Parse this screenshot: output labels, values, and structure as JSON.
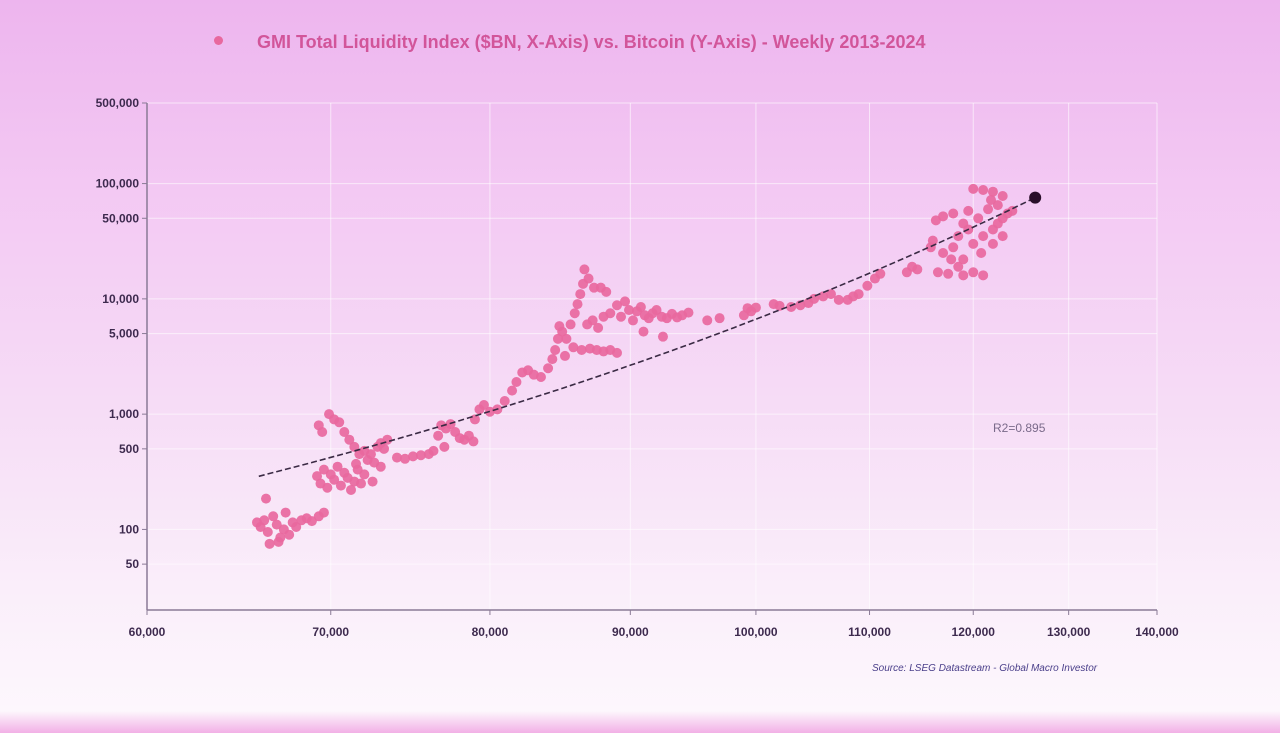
{
  "chart_data": {
    "type": "scatter",
    "title": "GMI Total Liquidity Index ($BN, X-Axis) vs. Bitcoin (Y-Axis) - Weekly 2013-2024",
    "xlabel": "",
    "ylabel": "",
    "x_scale": "log",
    "y_scale": "log",
    "xlim": [
      60000,
      140000
    ],
    "ylim": [
      20,
      500000
    ],
    "x_ticks": [
      "60,000",
      "70,000",
      "80,000",
      "90,000",
      "100,000",
      "110,000",
      "120,000",
      "130,000",
      "140,000"
    ],
    "x_tick_values": [
      60000,
      70000,
      80000,
      90000,
      100000,
      110000,
      120000,
      130000,
      140000
    ],
    "y_ticks": [
      "500,000",
      "100,000",
      "50,000",
      "10,000",
      "5,000",
      "1,000",
      "500",
      "100",
      "50"
    ],
    "y_tick_values": [
      500000,
      100000,
      50000,
      10000,
      5000,
      1000,
      500,
      100,
      50
    ],
    "grid": true,
    "legend": "top-left",
    "colors": {
      "points": "#e8689e",
      "latest": "#2a0f2a",
      "trend": "#3a2a44",
      "title": "#d2559a"
    },
    "annotation": "R2=0.895",
    "source": "Source: LSEG Datastream - Global Macro Investor",
    "trendline": {
      "type": "exponential",
      "x_start": 65900,
      "y_start": 289,
      "x_end": 126400,
      "y_end": 75500
    },
    "latest_point": [
      126400,
      75500
    ],
    "points": [
      [
        65800,
        115
      ],
      [
        66000,
        105
      ],
      [
        66200,
        120
      ],
      [
        66400,
        95
      ],
      [
        66500,
        75
      ],
      [
        66700,
        130
      ],
      [
        66900,
        110
      ],
      [
        67100,
        85
      ],
      [
        67300,
        100
      ],
      [
        67400,
        140
      ],
      [
        67600,
        90
      ],
      [
        67800,
        115
      ],
      [
        68000,
        105
      ],
      [
        68300,
        120
      ],
      [
        68600,
        125
      ],
      [
        68900,
        118
      ],
      [
        69300,
        130
      ],
      [
        69600,
        140
      ],
      [
        66300,
        185
      ],
      [
        67000,
        78
      ],
      [
        69200,
        290
      ],
      [
        69400,
        250
      ],
      [
        69600,
        330
      ],
      [
        69800,
        230
      ],
      [
        70000,
        300
      ],
      [
        70200,
        270
      ],
      [
        70400,
        350
      ],
      [
        70600,
        240
      ],
      [
        70800,
        310
      ],
      [
        71000,
        280
      ],
      [
        71200,
        220
      ],
      [
        71400,
        260
      ],
      [
        71600,
        330
      ],
      [
        71800,
        250
      ],
      [
        72000,
        300
      ],
      [
        72200,
        400
      ],
      [
        72400,
        450
      ],
      [
        72600,
        380
      ],
      [
        72800,
        520
      ],
      [
        73000,
        560
      ],
      [
        73200,
        500
      ],
      [
        73400,
        600
      ],
      [
        73000,
        350
      ],
      [
        72500,
        260
      ],
      [
        71500,
        370
      ],
      [
        69300,
        800
      ],
      [
        69500,
        700
      ],
      [
        69900,
        1000
      ],
      [
        70200,
        900
      ],
      [
        70500,
        850
      ],
      [
        70800,
        700
      ],
      [
        71100,
        600
      ],
      [
        71400,
        520
      ],
      [
        71700,
        450
      ],
      [
        72000,
        480
      ],
      [
        74000,
        420
      ],
      [
        74500,
        410
      ],
      [
        75000,
        430
      ],
      [
        75500,
        440
      ],
      [
        76000,
        450
      ],
      [
        76300,
        480
      ],
      [
        76600,
        650
      ],
      [
        76800,
        800
      ],
      [
        77100,
        750
      ],
      [
        77400,
        820
      ],
      [
        77700,
        700
      ],
      [
        78000,
        620
      ],
      [
        78300,
        600
      ],
      [
        78600,
        650
      ],
      [
        78900,
        580
      ],
      [
        77000,
        520
      ],
      [
        79000,
        900
      ],
      [
        79300,
        1100
      ],
      [
        79600,
        1200
      ],
      [
        80000,
        1050
      ],
      [
        80500,
        1100
      ],
      [
        81000,
        1300
      ],
      [
        81500,
        1600
      ],
      [
        81800,
        1900
      ],
      [
        82200,
        2300
      ],
      [
        82600,
        2400
      ],
      [
        83000,
        2200
      ],
      [
        83500,
        2100
      ],
      [
        84000,
        2500
      ],
      [
        84300,
        3000
      ],
      [
        84500,
        3600
      ],
      [
        84700,
        4500
      ],
      [
        84800,
        5800
      ],
      [
        85000,
        5200
      ],
      [
        85300,
        4500
      ],
      [
        85600,
        6000
      ],
      [
        85900,
        7500
      ],
      [
        86100,
        9000
      ],
      [
        86300,
        11000
      ],
      [
        86500,
        13500
      ],
      [
        86600,
        18000
      ],
      [
        86900,
        15000
      ],
      [
        87300,
        12500
      ],
      [
        87800,
        12500
      ],
      [
        88200,
        11500
      ],
      [
        85200,
        3200
      ],
      [
        85800,
        3800
      ],
      [
        86400,
        3600
      ],
      [
        87000,
        3700
      ],
      [
        87500,
        3600
      ],
      [
        88000,
        3500
      ],
      [
        88500,
        3600
      ],
      [
        89000,
        3400
      ],
      [
        86800,
        6000
      ],
      [
        87200,
        6500
      ],
      [
        87600,
        5600
      ],
      [
        88000,
        7000
      ],
      [
        88500,
        7500
      ],
      [
        89000,
        8800
      ],
      [
        89300,
        7000
      ],
      [
        89600,
        9500
      ],
      [
        89900,
        8000
      ],
      [
        90200,
        6500
      ],
      [
        90500,
        7800
      ],
      [
        90800,
        8500
      ],
      [
        91100,
        7200
      ],
      [
        91400,
        6800
      ],
      [
        91700,
        7500
      ],
      [
        92000,
        8000
      ],
      [
        92400,
        7000
      ],
      [
        92800,
        6800
      ],
      [
        93200,
        7400
      ],
      [
        93600,
        6900
      ],
      [
        94000,
        7200
      ],
      [
        94500,
        7600
      ],
      [
        91000,
        5200
      ],
      [
        92500,
        4700
      ],
      [
        96000,
        6500
      ],
      [
        97000,
        6800
      ],
      [
        99000,
        7200
      ],
      [
        99300,
        8300
      ],
      [
        99600,
        7800
      ],
      [
        100000,
        8400
      ],
      [
        101500,
        9000
      ],
      [
        102000,
        8700
      ],
      [
        103000,
        8500
      ],
      [
        103800,
        8800
      ],
      [
        104500,
        9200
      ],
      [
        105000,
        10000
      ],
      [
        105800,
        10500
      ],
      [
        106500,
        11000
      ],
      [
        107200,
        9800
      ],
      [
        108000,
        9800
      ],
      [
        108500,
        10500
      ],
      [
        109000,
        11000
      ],
      [
        109800,
        13000
      ],
      [
        110500,
        15000
      ],
      [
        111000,
        16500
      ],
      [
        113500,
        17000
      ],
      [
        114000,
        19000
      ],
      [
        114500,
        18000
      ],
      [
        115800,
        28000
      ],
      [
        116000,
        32000
      ],
      [
        116300,
        48000
      ],
      [
        117000,
        52000
      ],
      [
        118000,
        55000
      ],
      [
        119500,
        58000
      ],
      [
        120000,
        90000
      ],
      [
        121000,
        88000
      ],
      [
        122000,
        85000
      ],
      [
        123000,
        78000
      ],
      [
        116500,
        17000
      ],
      [
        117500,
        16500
      ],
      [
        118500,
        19000
      ],
      [
        119000,
        16000
      ],
      [
        120000,
        17000
      ],
      [
        121000,
        16000
      ],
      [
        117000,
        25000
      ],
      [
        118000,
        28000
      ],
      [
        119000,
        22000
      ],
      [
        120000,
        30000
      ],
      [
        121000,
        35000
      ],
      [
        122000,
        40000
      ],
      [
        122500,
        45000
      ],
      [
        123000,
        50000
      ],
      [
        123500,
        55000
      ],
      [
        121500,
        60000
      ],
      [
        120500,
        50000
      ],
      [
        119500,
        40000
      ],
      [
        118500,
        35000
      ],
      [
        122500,
        65000
      ],
      [
        121800,
        72000
      ],
      [
        124000,
        58000
      ],
      [
        119000,
        45000
      ],
      [
        117800,
        22000
      ],
      [
        120800,
        25000
      ],
      [
        122000,
        30000
      ],
      [
        123000,
        35000
      ]
    ]
  }
}
